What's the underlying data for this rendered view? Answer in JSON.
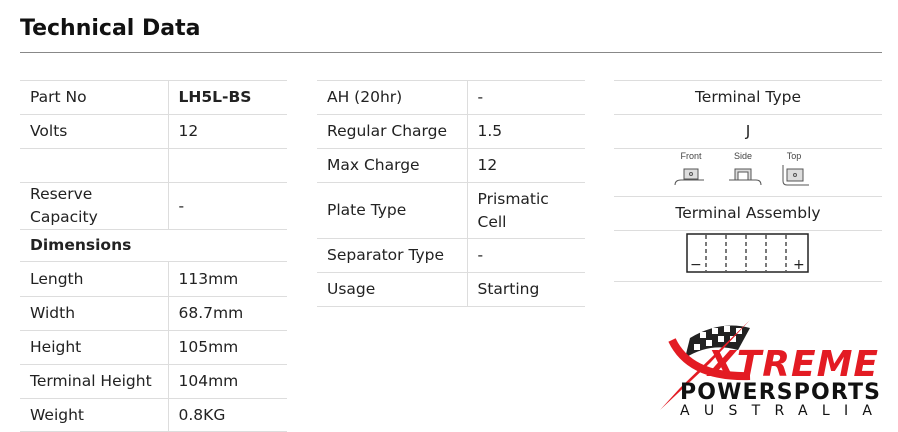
{
  "title": "Technical Data",
  "left": [
    {
      "label": "Part No",
      "value": "LH5L-BS",
      "bold_value": true
    },
    {
      "label": "Volts",
      "value": "12"
    },
    {
      "label": "",
      "value": ""
    },
    {
      "label": "Reserve Capacity",
      "value": "-"
    },
    {
      "section": "Dimensions"
    },
    {
      "label": "Length",
      "value": "113mm"
    },
    {
      "label": "Width",
      "value": "68.7mm"
    },
    {
      "label": "Height",
      "value": "105mm"
    },
    {
      "label": "Terminal Height",
      "value": "104mm"
    },
    {
      "label": "Weight",
      "value": "0.8KG"
    }
  ],
  "middle": [
    {
      "label": "AH (20hr)",
      "value": "-"
    },
    {
      "label": "Regular Charge",
      "value": "1.5"
    },
    {
      "label": "Max Charge",
      "value": "12"
    },
    {
      "label": "Plate Type",
      "value": "Prismatic Cell"
    },
    {
      "label": "Separator Type",
      "value": "-"
    },
    {
      "label": "Usage",
      "value": "Starting"
    }
  ],
  "right": {
    "terminal_type_label": "Terminal Type",
    "terminal_type_value": "J",
    "terminal_views": [
      "Front",
      "Side",
      "Top"
    ],
    "terminal_assembly_label": "Terminal Assembly",
    "negative": "−",
    "positive": "+"
  },
  "logo": {
    "line1": "XTREME",
    "line2": "POWERSPORTS",
    "line3": "AUSTRALIA",
    "brand_color": "#e31b23"
  }
}
